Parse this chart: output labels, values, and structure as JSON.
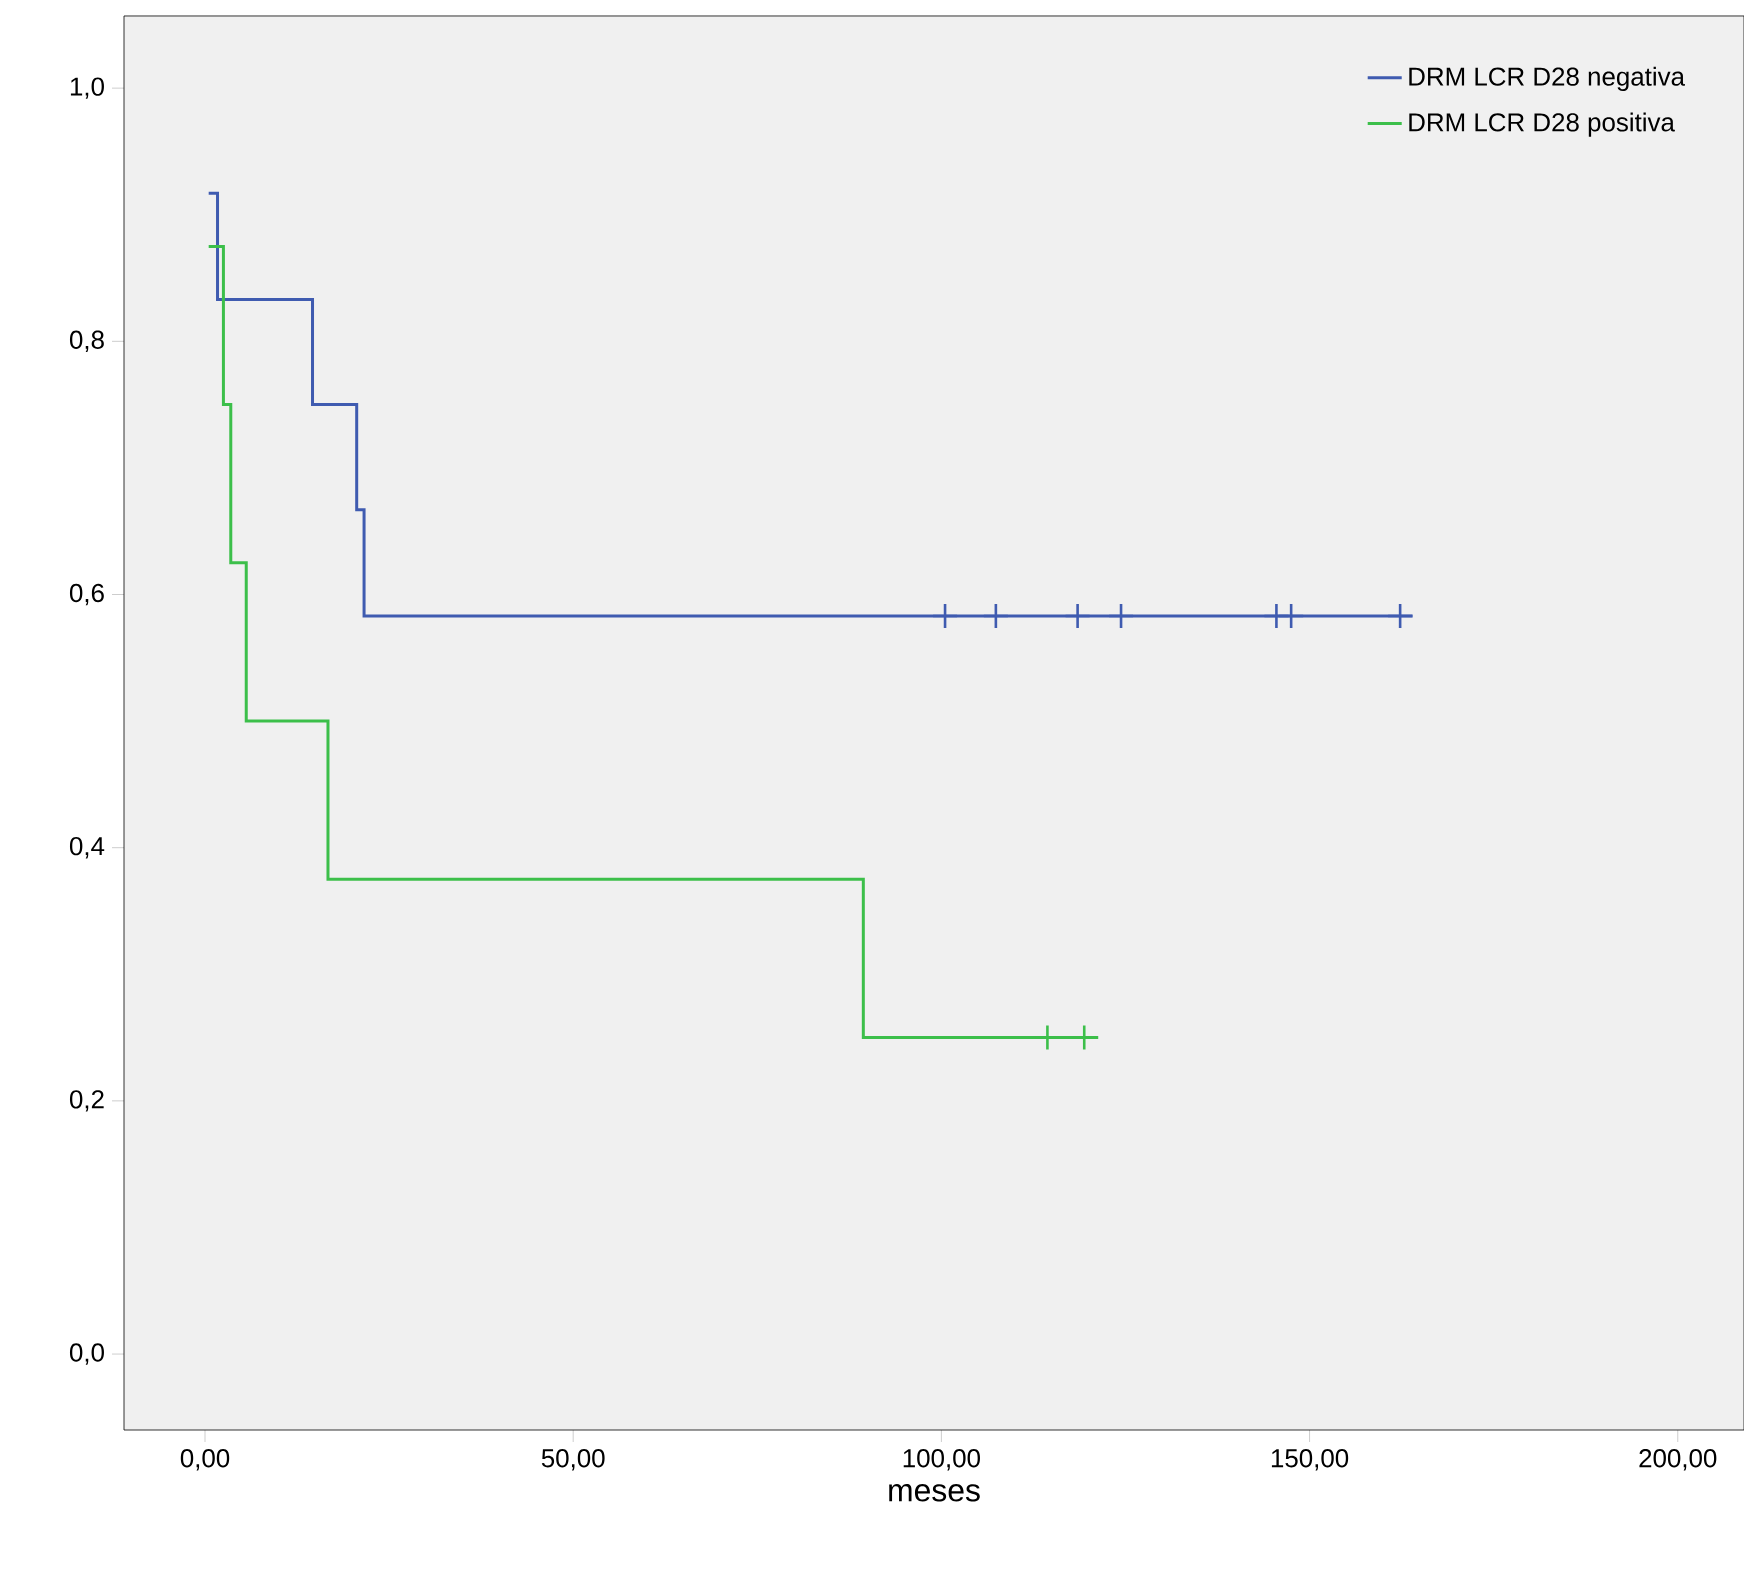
{
  "chart_data": {
    "type": "step",
    "xlabel": "meses",
    "xlim": [
      -11,
      209
    ],
    "ylim": [
      -0.06,
      1.057
    ],
    "xticks": [
      {
        "value": 0,
        "label": "0,00"
      },
      {
        "value": 50,
        "label": "50,00"
      },
      {
        "value": 100,
        "label": "100,00"
      },
      {
        "value": 150,
        "label": "150,00"
      },
      {
        "value": 200,
        "label": "200,00"
      }
    ],
    "yticks": [
      {
        "value": 0,
        "label": "0,0"
      },
      {
        "value": 0.2,
        "label": "0,2"
      },
      {
        "value": 0.4,
        "label": "0,4"
      },
      {
        "value": 0.6,
        "label": "0,6"
      },
      {
        "value": 0.8,
        "label": "0,8"
      },
      {
        "value": 1.0,
        "label": "1,0"
      }
    ],
    "grid": false,
    "legend": "top right",
    "series": [
      {
        "name": "DRM LCR D28 negativa",
        "color": "#3f5bb0",
        "x": [
          0.5,
          1.7,
          14.6,
          20.6,
          21.6,
          164
        ],
        "values": [
          0.917,
          0.833,
          0.75,
          0.667,
          0.583,
          0.583
        ]
      },
      {
        "name": "DRM LCR D28 positiva",
        "color": "#3cbf4a",
        "x": [
          0.5,
          2.5,
          3.5,
          5.6,
          16.7,
          89.4,
          121.3
        ],
        "values": [
          0.875,
          0.75,
          0.625,
          0.5,
          0.375,
          0.25,
          0.25
        ]
      },
      {
        "color": "#3f5bb0",
        "type": "scatter",
        "marker": "cross",
        "x": [
          100.5,
          107.4,
          118.5,
          124.4,
          145.5,
          147.5,
          162.3
        ],
        "values": [
          0.583,
          0.583,
          0.583,
          0.583,
          0.583,
          0.583,
          0.583
        ]
      },
      {
        "color": "#3cbf4a",
        "type": "scatter",
        "marker": "cross",
        "x": [
          114.4,
          119.4
        ],
        "values": [
          0.25,
          0.25
        ]
      }
    ]
  }
}
